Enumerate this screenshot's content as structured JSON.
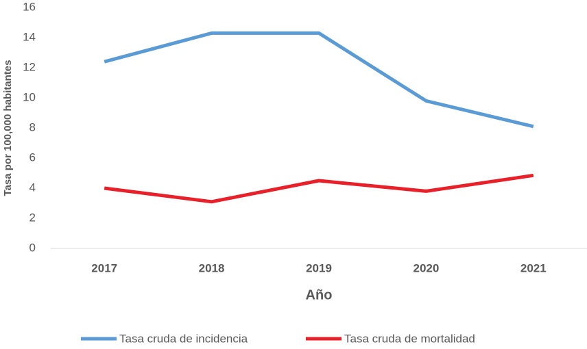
{
  "chart_data": {
    "type": "line",
    "x_label": "Año",
    "y_label": "Tasa por 100,000 habitantes",
    "categories": [
      "2017",
      "2018",
      "2019",
      "2020",
      "2021"
    ],
    "series": [
      {
        "name": "Tasa cruda de incidencia",
        "color": "#5b9bd5",
        "values": [
          12.4,
          14.3,
          14.3,
          9.8,
          8.1
        ]
      },
      {
        "name": "Tasa cruda de mortalidad",
        "color": "#e8202a",
        "values": [
          4.0,
          3.1,
          4.5,
          3.8,
          4.85
        ]
      }
    ],
    "ylim": [
      0,
      16
    ],
    "yticks": [
      0,
      2,
      4,
      6,
      8,
      10,
      12,
      14,
      16
    ],
    "grid": false,
    "legend": "bottom"
  }
}
